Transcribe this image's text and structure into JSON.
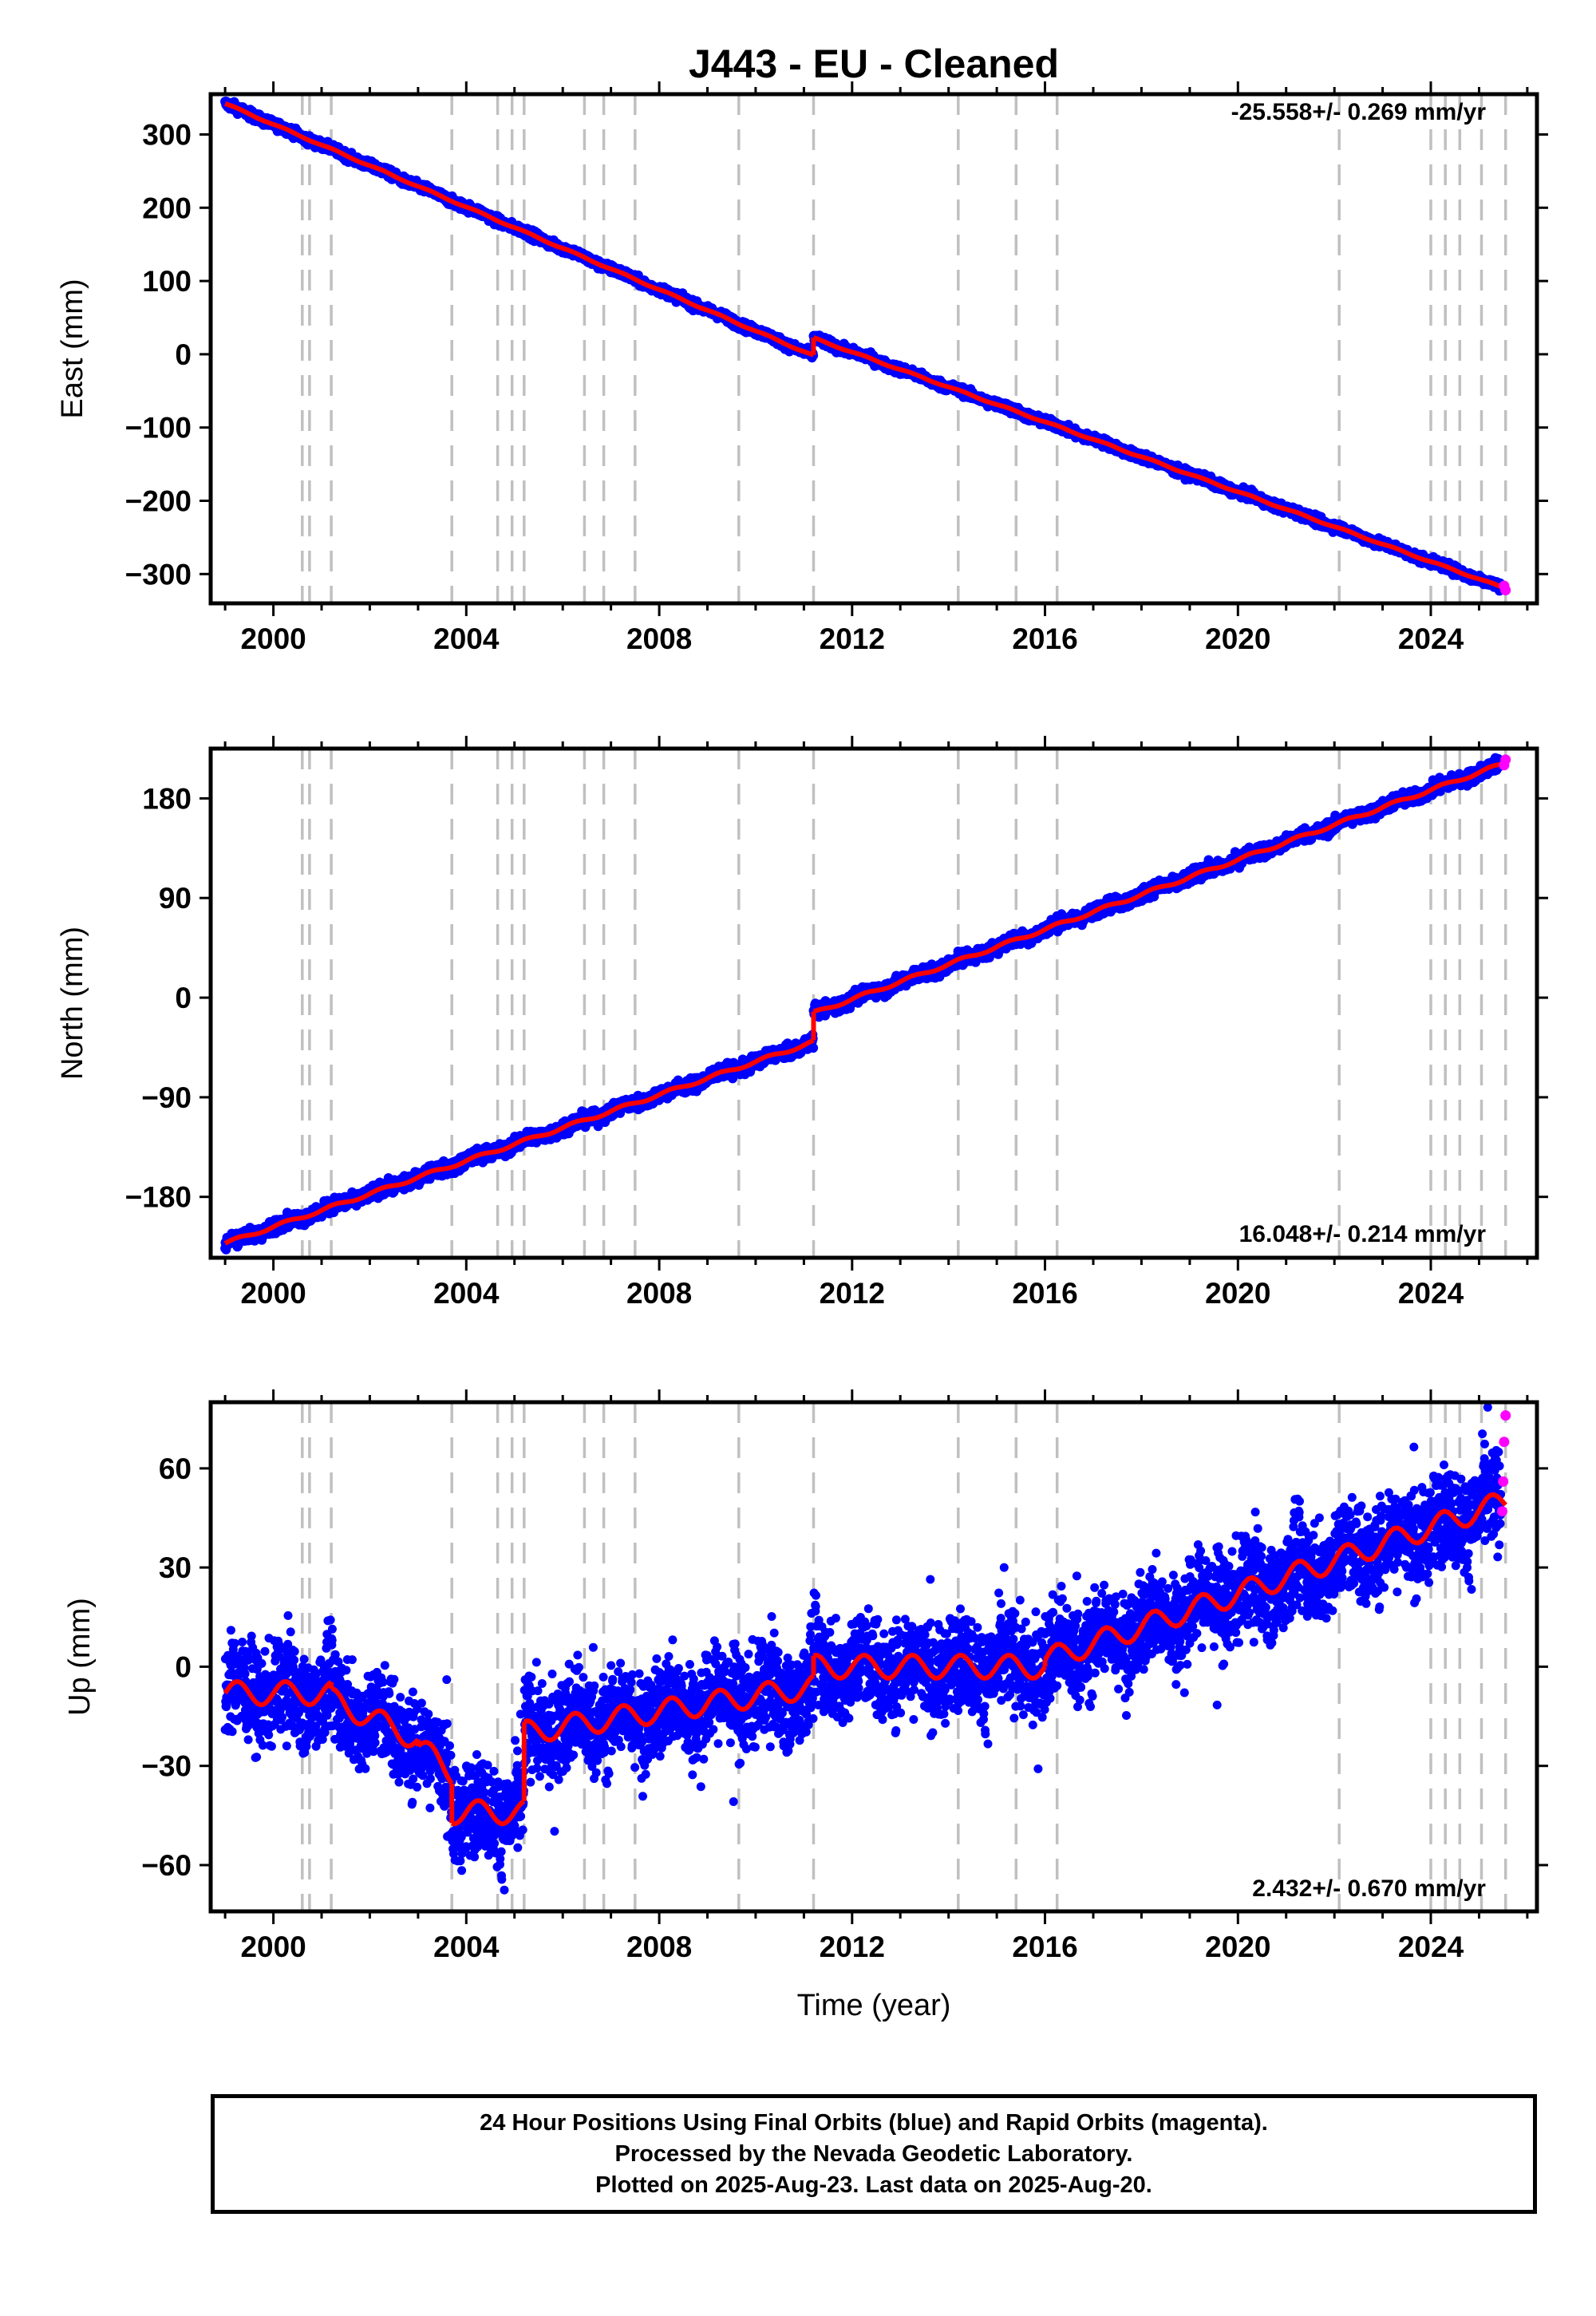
{
  "chart_data": {
    "type": "scatter",
    "title": "J443  - EU - Cleaned",
    "xlabel": "Time (year)",
    "xlim": [
      1998.7,
      2026.2
    ],
    "x_ticks": [
      "2000",
      "2004",
      "2008",
      "2012",
      "2016",
      "2020",
      "2024"
    ],
    "x_tick_values": [
      2000,
      2004,
      2008,
      2012,
      2016,
      2020,
      2024
    ],
    "grid": false,
    "equipment_change_lines_year": [
      2000.6,
      2000.75,
      2001.2,
      2003.7,
      2004.65,
      2004.95,
      2005.2,
      2006.45,
      2006.85,
      2007.5,
      2009.65,
      2011.2,
      2014.2,
      2015.4,
      2016.25,
      2022.1,
      2024.0,
      2024.3,
      2024.6,
      2025.05,
      2025.55
    ],
    "colors": {
      "final_orbits": "#0000ff",
      "rapid_orbits": "#ff00ff",
      "model_fit": "#ff0000",
      "change_lines": "#c0c0c0"
    },
    "panels": [
      {
        "name": "east",
        "ylabel": "East (mm)",
        "ylim": [
          -340,
          355
        ],
        "y_ticks": [
          "300",
          "200",
          "100",
          "0",
          "−100",
          "−200",
          "−300"
        ],
        "y_tick_values": [
          300,
          200,
          100,
          0,
          -100,
          -200,
          -300
        ],
        "rate_label": "-25.558+/- 0.269 mm/yr",
        "rate_position": "top-right",
        "trend_rate_mm_per_yr": -25.558,
        "segments": [
          {
            "x": [
              1999.0,
              2011.2
            ],
            "y": [
              342,
              -2
            ]
          },
          {
            "x": [
              2011.2,
              2025.55
            ],
            "y": [
              22,
              -320
            ]
          }
        ],
        "noise_mm": 3,
        "seasonal_amplitude_mm": 1,
        "rapid_points": [
          [
            2025.52,
            -316
          ],
          [
            2025.55,
            -322
          ]
        ]
      },
      {
        "name": "north",
        "ylabel": "North (mm)",
        "ylim": [
          -235,
          225
        ],
        "y_ticks": [
          "180",
          "90",
          "0",
          "−90",
          "−180"
        ],
        "y_tick_values": [
          180,
          90,
          0,
          -90,
          -180
        ],
        "rate_label": "16.048+/- 0.214 mm/yr",
        "rate_position": "bottom-right",
        "trend_rate_mm_per_yr": 16.048,
        "segments": [
          {
            "x": [
              1999.0,
              2011.2
            ],
            "y": [
              -222,
              -40
            ]
          },
          {
            "x": [
              2011.2,
              2025.55
            ],
            "y": [
              -14,
              212
            ]
          }
        ],
        "noise_mm": 3,
        "seasonal_amplitude_mm": 1.5,
        "rapid_points": [
          [
            2025.52,
            210
          ],
          [
            2025.55,
            215
          ]
        ]
      },
      {
        "name": "up",
        "ylabel": "Up (mm)",
        "ylim": [
          -74,
          80
        ],
        "y_ticks": [
          "60",
          "30",
          "0",
          "−30",
          "−60"
        ],
        "y_tick_values": [
          60,
          30,
          0,
          -30,
          -60
        ],
        "rate_label": "2.432+/- 0.670 mm/yr",
        "rate_position": "bottom-right",
        "trend_rate_mm_per_yr": 2.432,
        "segments": [
          {
            "x": [
              1999.0,
              2001.2
            ],
            "y": [
              -8,
              -8
            ]
          },
          {
            "x": [
              2001.2,
              2003.0
            ],
            "y": [
              -10,
              -22
            ]
          },
          {
            "x": [
              2003.0,
              2003.7
            ],
            "y": [
              -24,
              -32
            ]
          },
          {
            "x": [
              2003.7,
              2005.2
            ],
            "y": [
              -44,
              -44
            ]
          },
          {
            "x": [
              2005.2,
              2011.2
            ],
            "y": [
              -20,
              -6
            ]
          },
          {
            "x": [
              2011.2,
              2016.0
            ],
            "y": [
              0,
              0
            ]
          },
          {
            "x": [
              2016.0,
              2025.55
            ],
            "y": [
              2,
              50
            ]
          }
        ],
        "noise_mm": 7,
        "seasonal_amplitude_mm": 3.5,
        "rapid_points": [
          [
            2025.48,
            47
          ],
          [
            2025.5,
            56
          ],
          [
            2025.52,
            68
          ],
          [
            2025.55,
            76
          ]
        ]
      }
    ]
  },
  "footer": {
    "line1": "24 Hour Positions Using Final Orbits (blue) and Rapid Orbits (magenta).",
    "line2": "Processed by the Nevada Geodetic Laboratory.",
    "line3": "Plotted on 2025-Aug-23. Last data on 2025-Aug-20."
  }
}
